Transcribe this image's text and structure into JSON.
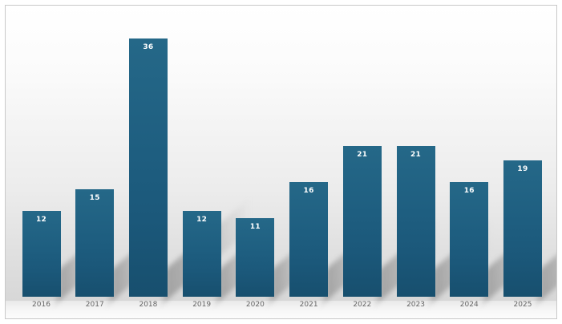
{
  "window": {
    "background_color": "#ffffff",
    "border_color": "#c9c9c9"
  },
  "chart_data": {
    "type": "bar",
    "title": "",
    "xlabel": "",
    "ylabel": "",
    "categories": [
      "2016",
      "2017",
      "2018",
      "2019",
      "2020",
      "2021",
      "2022",
      "2023",
      "2024",
      "2025"
    ],
    "values": [
      12,
      15,
      36,
      12,
      11,
      16,
      21,
      21,
      16,
      19
    ],
    "series": [
      {
        "name": "",
        "values": [
          12,
          15,
          36,
          12,
          11,
          16,
          21,
          21,
          16,
          19
        ]
      }
    ],
    "ylim": [
      0,
      36
    ],
    "y_axis_visible": false,
    "x_axis_visible": false,
    "gridlines": false,
    "legend_position": "none",
    "value_labels_shown": true,
    "colors": {
      "bar_fill_top": "#256888",
      "bar_fill_bottom": "#174f6e",
      "value_label": "#ffffff",
      "category_label": "#666666",
      "plot_background_top": "#ffffff",
      "plot_background_bottom": "#d7d7d7",
      "shadow": "#8a8a8a",
      "frame_border": "#c9c9c9"
    }
  }
}
